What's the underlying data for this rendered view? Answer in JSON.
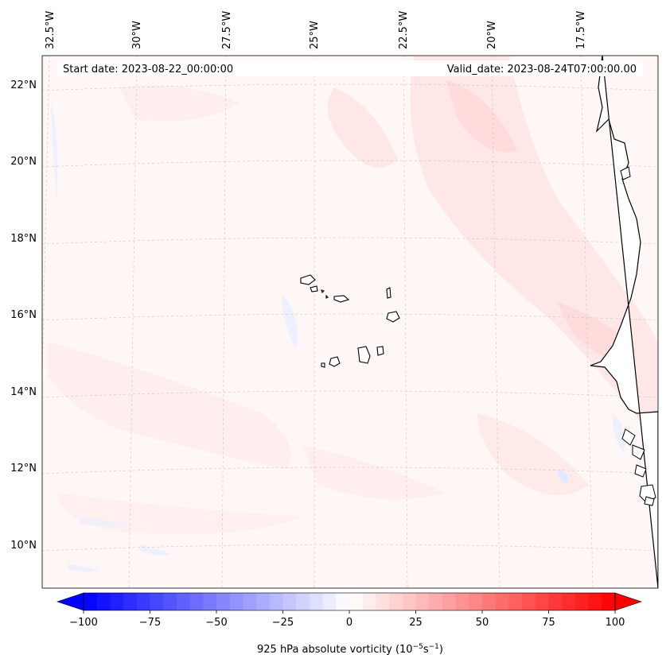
{
  "map": {
    "start_label": "Start date: 2023-08-22_00:00:00",
    "valid_label": "Valid_date: 2023-08-24T07:00:00.00",
    "lon_labels": [
      "32.5°W",
      "30°W",
      "27.5°W",
      "25°W",
      "22.5°W",
      "20°W",
      "17.5°W"
    ],
    "lat_labels": [
      "22°N",
      "20°N",
      "18°N",
      "16°N",
      "14°N",
      "12°N",
      "10°N"
    ]
  },
  "colorbar": {
    "title_main": "925 hPa absolute vorticity (10",
    "title_exp1": "−5",
    "title_mid": "s",
    "title_exp2": "−1",
    "title_end": ")",
    "ticks": [
      "−100",
      "−75",
      "−50",
      "−25",
      "0",
      "25",
      "50",
      "75",
      "100"
    ],
    "min_color": "#0000ff",
    "mid_color": "#ffffff",
    "max_color": "#ff0000"
  }
}
